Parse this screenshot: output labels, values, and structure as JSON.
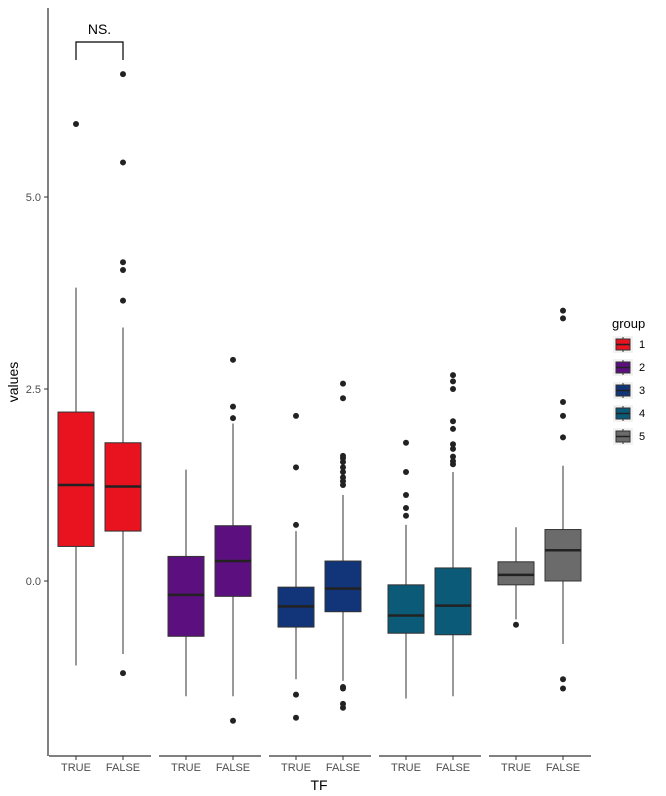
{
  "chart_data": {
    "type": "boxplot",
    "xlabel": "TF",
    "ylabel": "values",
    "y_ticks": [
      0.0,
      2.5,
      5.0
    ],
    "y_tick_labels": [
      "0.0",
      "2.5",
      "5.0"
    ],
    "ylim": [
      -2.3,
      7.5
    ],
    "legend": {
      "title": "group",
      "placement": "right"
    },
    "annotation": {
      "text": "NS.",
      "group": "1"
    },
    "groups": [
      {
        "name": "1",
        "color": "#e8131f",
        "boxes": [
          {
            "x": "TRUE",
            "q1": 0.45,
            "median": 1.25,
            "q3": 2.2,
            "whisker_low": -1.1,
            "whisker_high": 3.82,
            "outliers": [
              5.95
            ]
          },
          {
            "x": "FALSE",
            "q1": 0.65,
            "median": 1.23,
            "q3": 1.8,
            "whisker_low": -0.95,
            "whisker_high": 3.3,
            "outliers": [
              -1.2,
              3.65,
              4.05,
              4.15,
              5.45,
              6.6
            ]
          }
        ]
      },
      {
        "name": "2",
        "color": "#5c0f7e",
        "boxes": [
          {
            "x": "TRUE",
            "q1": -0.72,
            "median": -0.18,
            "q3": 0.32,
            "whisker_low": -1.5,
            "whisker_high": 1.45,
            "outliers": []
          },
          {
            "x": "FALSE",
            "q1": -0.2,
            "median": 0.26,
            "q3": 0.72,
            "whisker_low": -1.5,
            "whisker_high": 2.05,
            "outliers": [
              -1.82,
              2.12,
              2.27,
              2.88
            ]
          }
        ]
      },
      {
        "name": "3",
        "color": "#123478",
        "boxes": [
          {
            "x": "TRUE",
            "q1": -0.6,
            "median": -0.33,
            "q3": -0.08,
            "whisker_low": -1.28,
            "whisker_high": 0.65,
            "outliers": [
              -1.48,
              -1.78,
              0.73,
              1.48,
              2.15
            ]
          },
          {
            "x": "FALSE",
            "q1": -0.4,
            "median": -0.1,
            "q3": 0.26,
            "whisker_low": -1.3,
            "whisker_high": 1.12,
            "outliers": [
              -1.38,
              -1.4,
              -1.6,
              -1.65,
              1.25,
              1.3,
              1.35,
              1.42,
              1.48,
              1.55,
              1.6,
              1.63,
              2.38,
              2.57
            ]
          }
        ]
      },
      {
        "name": "4",
        "color": "#0a5a78",
        "boxes": [
          {
            "x": "TRUE",
            "q1": -0.68,
            "median": -0.45,
            "q3": -0.05,
            "whisker_low": -1.53,
            "whisker_high": 0.73,
            "outliers": [
              0.85,
              0.95,
              1.12,
              1.42,
              1.8
            ]
          },
          {
            "x": "FALSE",
            "q1": -0.7,
            "median": -0.32,
            "q3": 0.17,
            "whisker_low": -1.5,
            "whisker_high": 1.42,
            "outliers": [
              1.52,
              1.56,
              1.62,
              1.72,
              1.78,
              1.98,
              2.08,
              2.5,
              2.6,
              2.68
            ]
          }
        ]
      },
      {
        "name": "5",
        "color": "#6b6b6b",
        "boxes": [
          {
            "x": "TRUE",
            "q1": -0.05,
            "median": 0.08,
            "q3": 0.25,
            "whisker_low": -0.5,
            "whisker_high": 0.7,
            "outliers": [
              -0.57
            ]
          },
          {
            "x": "FALSE",
            "q1": 0.0,
            "median": 0.4,
            "q3": 0.67,
            "whisker_low": -0.82,
            "whisker_high": 1.5,
            "outliers": [
              -1.28,
              -1.4,
              1.87,
              2.15,
              2.33,
              3.42,
              3.52
            ]
          }
        ]
      }
    ]
  }
}
